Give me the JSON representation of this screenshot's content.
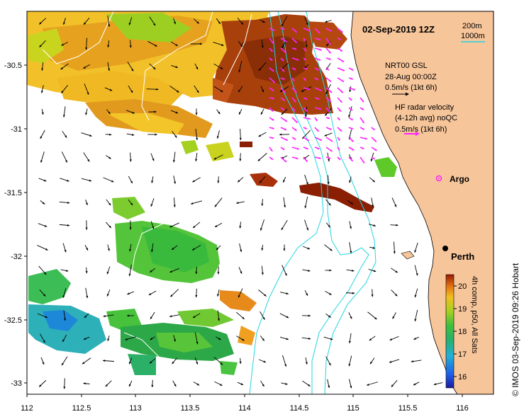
{
  "title": "02-Sep-2019 12Z",
  "depth_legend": {
    "shallow": "200m",
    "deep": "1000m"
  },
  "nrt_label": {
    "line1": "NRT00 GSL",
    "line2": "28-Aug 00:00Z",
    "line3": "0.5m/s (1kt 6h)"
  },
  "hf_label": {
    "line1": "HF radar velocity",
    "line2": "(4-12h avg) noQC",
    "line3": "0.5m/s (1kt 6h)"
  },
  "argo_label": "Argo",
  "city_label": "Perth",
  "colorbar": {
    "title": "4h comp, p50, All Sats",
    "ticks": [
      "20",
      "19",
      "18",
      "17",
      "16"
    ],
    "range": [
      15.5,
      20.5
    ]
  },
  "credit": "© IMOS 03-Sep-2019 09:26 Hobart",
  "axes": {
    "x_ticks": [
      "112",
      "112.5",
      "113",
      "113.5",
      "114",
      "114.5",
      "115",
      "115.5",
      "116"
    ],
    "y_ticks": [
      "-30.5",
      "-31",
      "-31.5",
      "-32",
      "-32.5",
      "-33"
    ]
  },
  "colors": {
    "land": "#f7c59a",
    "isobath": "#22d4e0",
    "hf_vector": "#ff22ff",
    "argo": "#ff22ff"
  }
}
